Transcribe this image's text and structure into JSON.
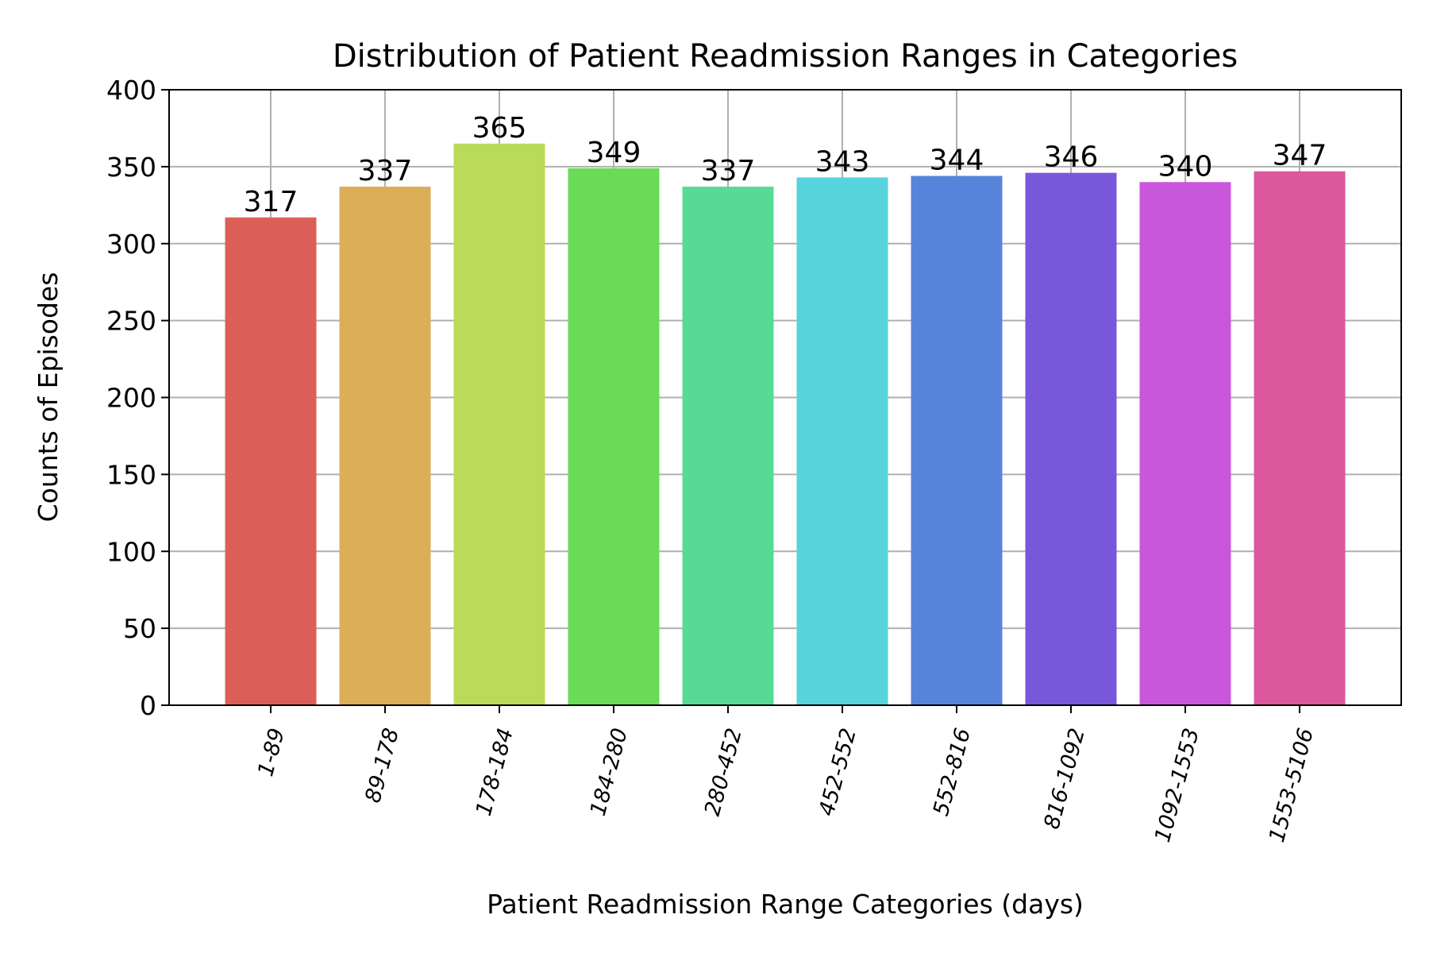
{
  "chart_data": {
    "type": "bar",
    "title": "Distribution of Patient Readmission Ranges in Categories",
    "xlabel": "Patient Readmission Range Categories (days)",
    "ylabel": "Counts of Episodes",
    "categories": [
      "1-89",
      "89-178",
      "178-184",
      "184-280",
      "280-452",
      "452-552",
      "552-816",
      "816-1092",
      "1092-1553",
      "1553-5106"
    ],
    "values": [
      317,
      337,
      365,
      349,
      337,
      343,
      344,
      346,
      340,
      347
    ],
    "colors": [
      "#db5f57",
      "#dbae57",
      "#b9db57",
      "#69db57",
      "#57db94",
      "#57d3db",
      "#5784db",
      "#7957db",
      "#c957db",
      "#db579e"
    ],
    "ylim": [
      0,
      400
    ],
    "yticks": [
      0,
      50,
      100,
      150,
      200,
      250,
      300,
      350,
      400
    ],
    "grid": true,
    "xtick_rotation": "75deg"
  }
}
